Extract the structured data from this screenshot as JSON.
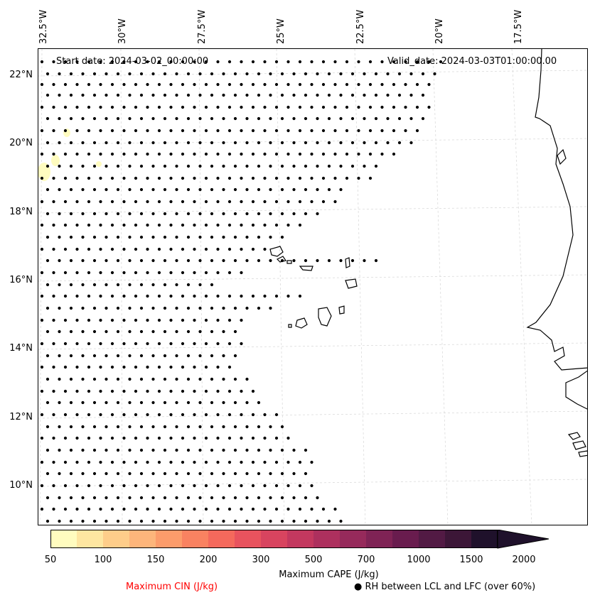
{
  "map": {
    "start_date": "Start date: 2024-03-02_00:00:00",
    "valid_date": "Valid_date: 2024-03-03T01:00:00.00",
    "lon_labels": [
      "32.5°W",
      "30°W",
      "27.5°W",
      "25°W",
      "22.5°W",
      "20°W",
      "17.5°W"
    ],
    "lat_labels": [
      "22°N",
      "20°N",
      "18°N",
      "16°N",
      "14°N",
      "12°N",
      "10°N"
    ],
    "gridlines": true,
    "region": "Cabo Verde and West African coast"
  },
  "colorbar": {
    "label": "Maximum CAPE (J/kg)",
    "ticks": [
      "50",
      "100",
      "150",
      "200",
      "300",
      "500",
      "700",
      "1000",
      "1500",
      "2000"
    ],
    "colors": [
      "#fffcbf",
      "#fee6a1",
      "#fecd8a",
      "#fdb57b",
      "#fc9c6b",
      "#f98261",
      "#f4695c",
      "#e8535e",
      "#d8445f",
      "#c3385f",
      "#ad305e",
      "#962a5b",
      "#7f2355",
      "#691c4e",
      "#521a44",
      "#3c1637",
      "#1f112b"
    ],
    "extend": "max"
  },
  "legend": {
    "cin_label": "Maximum CIN (J/kg)",
    "cin_color": "#ff0000",
    "rh_marker": "●",
    "rh_label": "RH between LCL and LFC (over 60%)"
  }
}
